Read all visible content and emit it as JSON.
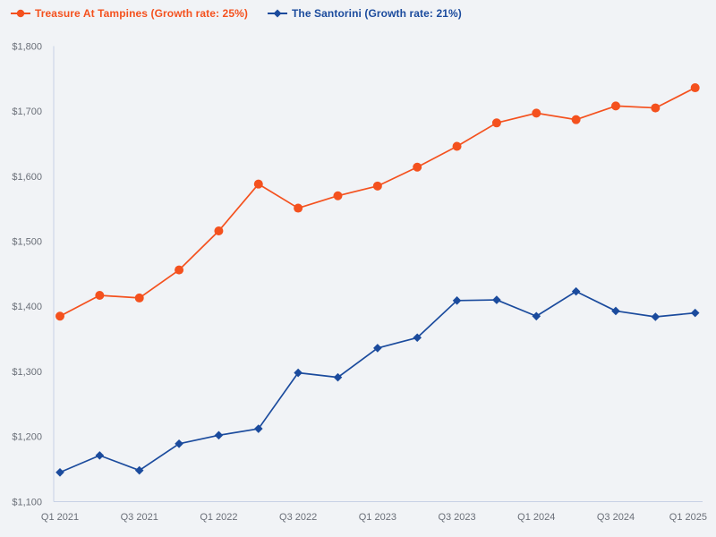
{
  "legend": {
    "items": [
      {
        "label": "Treasure At Tampines (Growth rate: 25%)",
        "color": "#f4511e",
        "marker": "circle"
      },
      {
        "label": "The Santorini (Growth rate: 21%)",
        "color": "#1b4b9d",
        "marker": "diamond"
      }
    ]
  },
  "colors": {
    "background": "#f1f3f6",
    "axis_line": "#c7d1e5",
    "tick_text": "#6a6f78",
    "series_treasure": "#f4511e",
    "series_santorini": "#1b4b9d"
  },
  "chart_data": {
    "type": "line",
    "x": [
      "Q1 2021",
      "Q2 2021",
      "Q3 2021",
      "Q4 2021",
      "Q1 2022",
      "Q2 2022",
      "Q3 2022",
      "Q4 2022",
      "Q1 2023",
      "Q2 2023",
      "Q3 2023",
      "Q4 2023",
      "Q1 2024",
      "Q2 2024",
      "Q3 2024",
      "Q4 2024",
      "Q1 2025"
    ],
    "x_tick_labels": [
      "Q1 2021",
      "Q3 2021",
      "Q1 2022",
      "Q3 2022",
      "Q1 2023",
      "Q3 2023",
      "Q1 2024",
      "Q3 2024",
      "Q1 2025"
    ],
    "x_tick_every": 2,
    "series": [
      {
        "name": "Treasure At Tampines",
        "legend_label": "Treasure At Tampines (Growth rate: 25%)",
        "growth_rate": "25%",
        "color": "#f4511e",
        "marker": "circle",
        "values": [
          1385,
          1417,
          1413,
          1456,
          1516,
          1588,
          1551,
          1570,
          1585,
          1614,
          1646,
          1682,
          1697,
          1687,
          1708,
          1705,
          1736
        ]
      },
      {
        "name": "The Santorini",
        "legend_label": "The Santorini (Growth rate: 21%)",
        "growth_rate": "21%",
        "color": "#1b4b9d",
        "marker": "diamond",
        "values": [
          1145,
          1171,
          1148,
          1189,
          1202,
          1212,
          1298,
          1291,
          1336,
          1352,
          1409,
          1410,
          1385,
          1423,
          1393,
          1384,
          1390
        ]
      }
    ],
    "ylim": [
      1100,
      1800
    ],
    "y_tick_step": 100,
    "y_tick_prefix": "$",
    "y_tick_labels": [
      "$1,100",
      "$1,200",
      "$1,300",
      "$1,400",
      "$1,500",
      "$1,600",
      "$1,700",
      "$1,800"
    ],
    "grid": false,
    "legend_position": "top-left",
    "title": "",
    "xlabel": "",
    "ylabel": ""
  }
}
